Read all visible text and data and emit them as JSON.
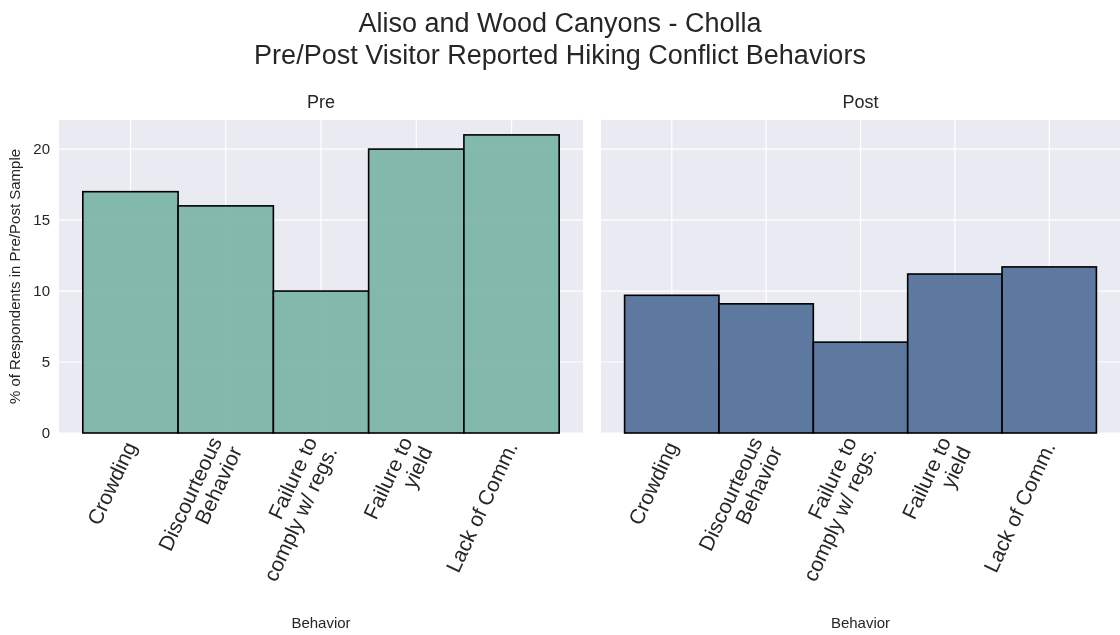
{
  "chart_data": [
    {
      "type": "bar",
      "title": "Aliso and Wood Canyons - Cholla\nPre/Post Visitor Reported Hiking Conflict Behaviors",
      "subtitle": "Pre",
      "xlabel": "Behavior",
      "ylabel": "% of Respondents in Pre/Post Sample",
      "categories": [
        "Crowding",
        "Discourteous\nBehavior",
        "Failure to\ncomply w/ regs.",
        "Failure to\nyield",
        "Lack of Comm."
      ],
      "values": [
        17,
        16,
        10,
        20,
        21
      ],
      "color": "#7db5a8",
      "ylim": [
        0,
        22.05
      ],
      "yticks": [
        0,
        5,
        10,
        15,
        20
      ],
      "grid": true
    },
    {
      "type": "bar",
      "subtitle": "Post",
      "xlabel": "Behavior",
      "categories": [
        "Crowding",
        "Discourteous\nBehavior",
        "Failure to\ncomply w/ regs.",
        "Failure to\nyield",
        "Lack of Comm."
      ],
      "values": [
        9.7,
        9.1,
        6.4,
        11.2,
        11.7
      ],
      "color": "#56739b",
      "ylim": [
        0,
        22.05
      ],
      "yticks": [
        0,
        5,
        10,
        15,
        20
      ],
      "grid": true,
      "tick_labels": "x"
    }
  ]
}
